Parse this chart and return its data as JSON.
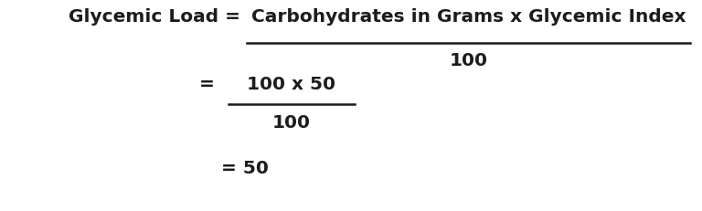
{
  "background_color": "#ffffff",
  "line1_left": "Glycemic Load = ",
  "line1_numerator": "Carbohydrates in Grams x Glycemic Index",
  "line1_denominator": "100",
  "line2_eq": "= ",
  "line2_numerator": "100 x 50",
  "line2_denominator": "100",
  "line3": "= 50",
  "font_size": 14.5,
  "font_color": "#1c1c1c",
  "fig_width": 7.68,
  "fig_height": 2.31,
  "dpi": 100
}
